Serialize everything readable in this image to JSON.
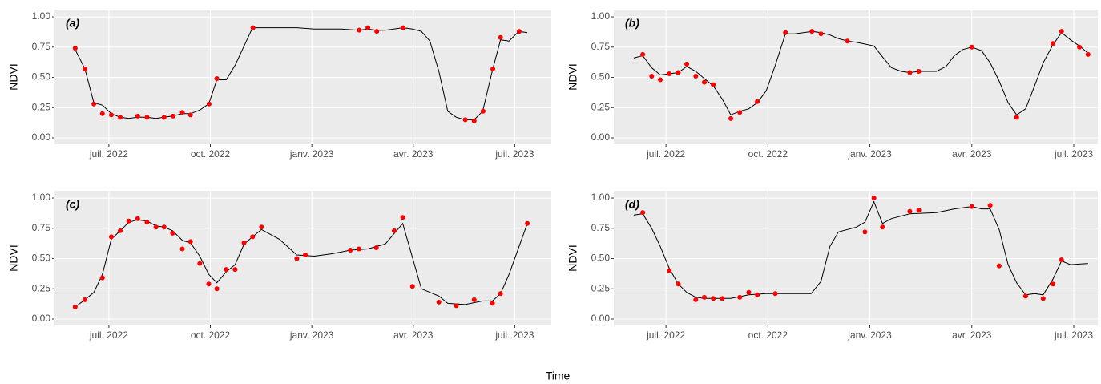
{
  "xlabel": "Time",
  "chart_data": [
    {
      "type": "line",
      "label": "(a)",
      "ylabel": "NDVI",
      "xlim": [
        2022.366,
        2023.59
      ],
      "ylim": [
        -0.053,
        1.06
      ],
      "xticks": [
        {
          "value": 2022.5,
          "label": "juil. 2022"
        },
        {
          "value": 2022.75,
          "label": "oct. 2022"
        },
        {
          "value": 2023.0,
          "label": "janv. 2023"
        },
        {
          "value": 2023.25,
          "label": "avr. 2023"
        },
        {
          "value": 2023.5,
          "label": "juil. 2023"
        }
      ],
      "yticks": [
        {
          "value": 0,
          "label": "0.00"
        },
        {
          "value": 0.25,
          "label": "0.25"
        },
        {
          "value": 0.5,
          "label": "0.50"
        },
        {
          "value": 0.75,
          "label": "0.75"
        },
        {
          "value": 1,
          "label": "1.00"
        }
      ],
      "grid": true,
      "series": [
        {
          "style": "line",
          "color": "#000000",
          "x": [
            2022.417,
            2022.441,
            2022.463,
            2022.484,
            2022.506,
            2022.528,
            2022.549,
            2022.571,
            2022.594,
            2022.616,
            2022.636,
            2022.657,
            2022.681,
            2022.701,
            2022.724,
            2022.746,
            2022.766,
            2022.789,
            2022.811,
            2022.854,
            2022.898,
            2022.963,
            2023.006,
            2023.073,
            2023.116,
            2023.138,
            2023.159,
            2023.181,
            2023.224,
            2023.248,
            2023.27,
            2023.291,
            2023.313,
            2023.335,
            2023.356,
            2023.378,
            2023.4,
            2023.421,
            2023.445,
            2023.465,
            2023.486,
            2023.51,
            2023.531
          ],
          "values": [
            0.73,
            0.57,
            0.29,
            0.27,
            0.2,
            0.17,
            0.16,
            0.17,
            0.17,
            0.16,
            0.17,
            0.18,
            0.2,
            0.2,
            0.23,
            0.28,
            0.48,
            0.48,
            0.6,
            0.91,
            0.91,
            0.91,
            0.9,
            0.9,
            0.89,
            0.9,
            0.89,
            0.89,
            0.91,
            0.9,
            0.88,
            0.8,
            0.55,
            0.22,
            0.17,
            0.15,
            0.15,
            0.22,
            0.56,
            0.81,
            0.8,
            0.88,
            0.87
          ]
        },
        {
          "style": "points",
          "color": "#ff0000",
          "x": [
            2022.417,
            2022.441,
            2022.463,
            2022.484,
            2022.506,
            2022.528,
            2022.571,
            2022.594,
            2022.636,
            2022.658,
            2022.681,
            2022.701,
            2022.747,
            2022.766,
            2022.855,
            2023.117,
            2023.138,
            2023.16,
            2023.225,
            2023.378,
            2023.4,
            2023.422,
            2023.446,
            2023.465,
            2023.511
          ],
          "values": [
            0.74,
            0.57,
            0.28,
            0.2,
            0.19,
            0.17,
            0.18,
            0.17,
            0.17,
            0.18,
            0.21,
            0.19,
            0.28,
            0.49,
            0.91,
            0.89,
            0.91,
            0.88,
            0.91,
            0.15,
            0.14,
            0.22,
            0.57,
            0.83,
            0.88
          ]
        }
      ]
    },
    {
      "type": "line",
      "label": "(b)",
      "ylabel": "NDVI",
      "xlim": [
        2022.372,
        2023.559
      ],
      "ylim": [
        -0.053,
        1.06
      ],
      "xticks": [
        {
          "value": 2022.5,
          "label": "juil. 2022"
        },
        {
          "value": 2022.75,
          "label": "oct. 2022"
        },
        {
          "value": 2023.0,
          "label": "janv. 2023"
        },
        {
          "value": 2023.25,
          "label": "avr. 2023"
        },
        {
          "value": 2023.5,
          "label": "juil. 2023"
        }
      ],
      "yticks": [
        {
          "value": 0,
          "label": "0.00"
        },
        {
          "value": 0.25,
          "label": "0.25"
        },
        {
          "value": 0.5,
          "label": "0.50"
        },
        {
          "value": 0.75,
          "label": "0.75"
        },
        {
          "value": 1,
          "label": "1.00"
        }
      ],
      "grid": true,
      "series": [
        {
          "style": "line",
          "color": "#000000",
          "x": [
            2022.421,
            2022.443,
            2022.465,
            2022.486,
            2022.508,
            2022.53,
            2022.551,
            2022.573,
            2022.594,
            2022.616,
            2022.638,
            2022.659,
            2022.681,
            2022.703,
            2022.724,
            2022.746,
            2022.768,
            2022.793,
            2022.815,
            2022.837,
            2022.858,
            2022.88,
            2022.902,
            2022.923,
            2022.945,
            2022.967,
            2023.01,
            2023.031,
            2023.053,
            2023.077,
            2023.098,
            2023.12,
            2023.163,
            2023.187,
            2023.207,
            2023.228,
            2023.25,
            2023.274,
            2023.295,
            2023.317,
            2023.339,
            2023.36,
            2023.382,
            2023.404,
            2023.425,
            2023.449,
            2023.47,
            2023.492,
            2023.514,
            2023.535
          ],
          "values": [
            0.66,
            0.68,
            0.58,
            0.52,
            0.53,
            0.54,
            0.59,
            0.55,
            0.49,
            0.43,
            0.32,
            0.19,
            0.22,
            0.24,
            0.29,
            0.39,
            0.6,
            0.86,
            0.86,
            0.87,
            0.88,
            0.87,
            0.85,
            0.82,
            0.8,
            0.79,
            0.76,
            0.67,
            0.58,
            0.55,
            0.54,
            0.55,
            0.55,
            0.59,
            0.68,
            0.73,
            0.75,
            0.72,
            0.62,
            0.47,
            0.29,
            0.19,
            0.24,
            0.43,
            0.62,
            0.77,
            0.87,
            0.81,
            0.76,
            0.7
          ]
        },
        {
          "style": "points",
          "color": "#ff0000",
          "x": [
            2022.443,
            2022.465,
            2022.486,
            2022.508,
            2022.53,
            2022.551,
            2022.573,
            2022.594,
            2022.616,
            2022.659,
            2022.681,
            2022.724,
            2022.793,
            2022.858,
            2022.88,
            2022.945,
            2023.098,
            2023.12,
            2023.25,
            2023.36,
            2023.449,
            2023.47,
            2023.514,
            2023.535
          ],
          "values": [
            0.69,
            0.51,
            0.48,
            0.53,
            0.54,
            0.61,
            0.51,
            0.46,
            0.44,
            0.16,
            0.21,
            0.3,
            0.87,
            0.88,
            0.86,
            0.8,
            0.54,
            0.55,
            0.75,
            0.17,
            0.78,
            0.88,
            0.75,
            0.69
          ]
        }
      ]
    },
    {
      "type": "line",
      "label": "(c)",
      "ylabel": "NDVI",
      "xlim": [
        2022.366,
        2023.59
      ],
      "ylim": [
        -0.053,
        1.06
      ],
      "xticks": [
        {
          "value": 2022.5,
          "label": "juil. 2022"
        },
        {
          "value": 2022.75,
          "label": "oct. 2022"
        },
        {
          "value": 2023.0,
          "label": "janv. 2023"
        },
        {
          "value": 2023.25,
          "label": "avr. 2023"
        },
        {
          "value": 2023.5,
          "label": "juil. 2023"
        }
      ],
      "yticks": [
        {
          "value": 0,
          "label": "0.00"
        },
        {
          "value": 0.25,
          "label": "0.25"
        },
        {
          "value": 0.5,
          "label": "0.50"
        },
        {
          "value": 0.75,
          "label": "0.75"
        },
        {
          "value": 1,
          "label": "1.00"
        }
      ],
      "grid": true,
      "series": [
        {
          "style": "line",
          "color": "#000000",
          "x": [
            2022.417,
            2022.441,
            2022.463,
            2022.484,
            2022.506,
            2022.528,
            2022.549,
            2022.571,
            2022.594,
            2022.616,
            2022.636,
            2022.657,
            2022.681,
            2022.701,
            2022.724,
            2022.746,
            2022.766,
            2022.789,
            2022.811,
            2022.833,
            2022.854,
            2022.876,
            2022.92,
            2022.963,
            2023.006,
            2023.05,
            2023.095,
            2023.138,
            2023.181,
            2023.224,
            2023.27,
            2023.313,
            2023.335,
            2023.378,
            2023.421,
            2023.445,
            2023.465,
            2023.486,
            2023.531
          ],
          "values": [
            0.1,
            0.16,
            0.22,
            0.37,
            0.66,
            0.73,
            0.8,
            0.82,
            0.81,
            0.77,
            0.76,
            0.73,
            0.65,
            0.63,
            0.52,
            0.37,
            0.3,
            0.39,
            0.45,
            0.62,
            0.68,
            0.74,
            0.66,
            0.53,
            0.52,
            0.54,
            0.57,
            0.58,
            0.62,
            0.79,
            0.25,
            0.19,
            0.13,
            0.12,
            0.15,
            0.15,
            0.21,
            0.37,
            0.79
          ]
        },
        {
          "style": "points",
          "color": "#ff0000",
          "x": [
            2022.417,
            2022.441,
            2022.484,
            2022.506,
            2022.528,
            2022.549,
            2022.571,
            2022.594,
            2022.616,
            2022.636,
            2022.657,
            2022.681,
            2022.701,
            2022.724,
            2022.746,
            2022.766,
            2022.789,
            2022.811,
            2022.833,
            2022.854,
            2022.876,
            2022.963,
            2022.984,
            2023.095,
            2023.116,
            2023.159,
            2023.203,
            2023.224,
            2023.248,
            2023.313,
            2023.356,
            2023.4,
            2023.445,
            2023.465,
            2023.531
          ],
          "values": [
            0.1,
            0.16,
            0.34,
            0.68,
            0.73,
            0.81,
            0.83,
            0.8,
            0.76,
            0.76,
            0.71,
            0.58,
            0.64,
            0.46,
            0.29,
            0.25,
            0.41,
            0.41,
            0.63,
            0.68,
            0.76,
            0.5,
            0.53,
            0.57,
            0.58,
            0.59,
            0.73,
            0.84,
            0.27,
            0.14,
            0.11,
            0.16,
            0.13,
            0.21,
            0.79
          ]
        }
      ]
    },
    {
      "type": "line",
      "label": "(d)",
      "ylabel": "NDVI",
      "xlim": [
        2022.372,
        2023.559
      ],
      "ylim": [
        -0.053,
        1.06
      ],
      "xticks": [
        {
          "value": 2022.5,
          "label": "juil. 2022"
        },
        {
          "value": 2022.75,
          "label": "oct. 2022"
        },
        {
          "value": 2023.0,
          "label": "janv. 2023"
        },
        {
          "value": 2023.25,
          "label": "avr. 2023"
        },
        {
          "value": 2023.5,
          "label": "juil. 2023"
        }
      ],
      "yticks": [
        {
          "value": 0,
          "label": "0.00"
        },
        {
          "value": 0.25,
          "label": "0.25"
        },
        {
          "value": 0.5,
          "label": "0.50"
        },
        {
          "value": 0.75,
          "label": "0.75"
        },
        {
          "value": 1,
          "label": "1.00"
        }
      ],
      "grid": true,
      "series": [
        {
          "style": "line",
          "color": "#000000",
          "x": [
            2022.421,
            2022.443,
            2022.465,
            2022.486,
            2022.508,
            2022.53,
            2022.551,
            2022.573,
            2022.594,
            2022.616,
            2022.659,
            2022.703,
            2022.746,
            2022.789,
            2022.833,
            2022.856,
            2022.88,
            2022.902,
            2022.923,
            2022.967,
            2022.988,
            2023.01,
            2023.031,
            2023.053,
            2023.098,
            2023.163,
            2023.207,
            2023.25,
            2023.274,
            2023.295,
            2023.317,
            2023.339,
            2023.36,
            2023.382,
            2023.404,
            2023.425,
            2023.449,
            2023.47,
            2023.492,
            2023.535
          ],
          "values": [
            0.86,
            0.87,
            0.75,
            0.6,
            0.42,
            0.29,
            0.22,
            0.18,
            0.17,
            0.17,
            0.17,
            0.2,
            0.21,
            0.21,
            0.21,
            0.21,
            0.31,
            0.6,
            0.72,
            0.76,
            0.8,
            0.97,
            0.79,
            0.83,
            0.87,
            0.88,
            0.91,
            0.93,
            0.91,
            0.91,
            0.74,
            0.45,
            0.3,
            0.2,
            0.21,
            0.2,
            0.33,
            0.48,
            0.45,
            0.46
          ]
        },
        {
          "style": "points",
          "color": "#ff0000",
          "x": [
            2022.443,
            2022.508,
            2022.53,
            2022.573,
            2022.594,
            2022.616,
            2022.638,
            2022.681,
            2022.703,
            2022.724,
            2022.768,
            2022.988,
            2023.01,
            2023.031,
            2023.098,
            2023.12,
            2023.25,
            2023.295,
            2023.317,
            2023.382,
            2023.425,
            2023.449,
            2023.47
          ],
          "values": [
            0.88,
            0.4,
            0.29,
            0.16,
            0.18,
            0.17,
            0.17,
            0.18,
            0.22,
            0.2,
            0.21,
            0.72,
            1.0,
            0.76,
            0.89,
            0.9,
            0.93,
            0.94,
            0.44,
            0.19,
            0.17,
            0.29,
            0.49
          ]
        }
      ]
    }
  ]
}
